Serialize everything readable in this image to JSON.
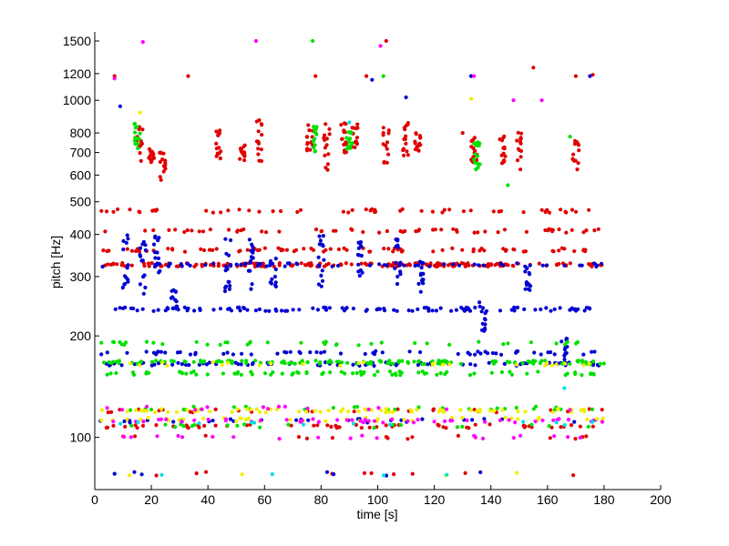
{
  "chart_data": {
    "type": "scatter",
    "title": "",
    "xlabel": "time [s]",
    "ylabel": "pitch [Hz]",
    "xlim": [
      0,
      200
    ],
    "ylim": [
      70,
      1500
    ],
    "yscale": "log",
    "grid": false,
    "legend": "none",
    "x_ticks": [
      0,
      20,
      40,
      60,
      80,
      100,
      120,
      140,
      160,
      180,
      200
    ],
    "y_ticks": [
      100,
      200,
      300,
      400,
      500,
      600,
      700,
      800,
      1000,
      1200,
      1500
    ],
    "colors": {
      "red": "#e00000",
      "blue": "#0000d0",
      "green": "#00e000",
      "yellow": "#f0f000",
      "magenta": "#ff00ff",
      "cyan": "#00e0e0"
    },
    "series": [
      {
        "color": "red",
        "pitch_bands": [
          {
            "x_range": [
              2,
              180
            ],
            "y": 325,
            "density": 180
          },
          {
            "x_range": [
              2,
              180
            ],
            "y": 360,
            "density": 80
          },
          {
            "x_range": [
              2,
              180
            ],
            "y": 410,
            "density": 60
          },
          {
            "x_range": [
              2,
              180
            ],
            "y": 470,
            "density": 55
          },
          {
            "x_range": [
              2,
              180
            ],
            "y": 108,
            "density": 55
          },
          {
            "x_range": [
              2,
              180
            ],
            "y": 120,
            "density": 25
          },
          {
            "x_range": [
              2,
              180
            ],
            "y": 100,
            "density": 15
          },
          {
            "x_range": [
              2,
              180
            ],
            "y": 78,
            "density": 10
          }
        ],
        "clusters": [
          {
            "x": 16,
            "y_range": [
              650,
              850
            ]
          },
          {
            "x": 20,
            "y_range": [
              650,
              720
            ]
          },
          {
            "x": 24,
            "y_range": [
              580,
              720
            ]
          },
          {
            "x": 44,
            "y_range": [
              660,
              820
            ]
          },
          {
            "x": 52,
            "y_range": [
              660,
              740
            ]
          },
          {
            "x": 58,
            "y_range": [
              640,
              900
            ]
          },
          {
            "x": 76,
            "y_range": [
              700,
              850
            ]
          },
          {
            "x": 82,
            "y_range": [
              620,
              870
            ]
          },
          {
            "x": 88,
            "y_range": [
              700,
              860
            ]
          },
          {
            "x": 92,
            "y_range": [
              720,
              860
            ]
          },
          {
            "x": 103,
            "y_range": [
              650,
              840
            ]
          },
          {
            "x": 110,
            "y_range": [
              680,
              860
            ]
          },
          {
            "x": 114,
            "y_range": [
              700,
              800
            ]
          },
          {
            "x": 134,
            "y_range": [
              640,
              780
            ]
          },
          {
            "x": 144,
            "y_range": [
              650,
              840
            ]
          },
          {
            "x": 150,
            "y_range": [
              620,
              820
            ]
          },
          {
            "x": 170,
            "y_range": [
              620,
              780
            ]
          }
        ],
        "outliers": [
          [
            7,
            1180
          ],
          [
            33,
            1180
          ],
          [
            78,
            1180
          ],
          [
            96,
            1180
          ],
          [
            103,
            1500
          ],
          [
            130,
            800
          ],
          [
            155,
            1250
          ],
          [
            170,
            1180
          ],
          [
            176,
            1190
          ]
        ]
      },
      {
        "color": "blue",
        "pitch_bands": [
          {
            "x_range": [
              2,
              180
            ],
            "y": 325,
            "density": 60
          },
          {
            "x_range": [
              2,
              180
            ],
            "y": 240,
            "density": 110
          },
          {
            "x_range": [
              2,
              180
            ],
            "y": 165,
            "density": 90
          },
          {
            "x_range": [
              2,
              180
            ],
            "y": 178,
            "density": 60
          },
          {
            "x_range": [
              2,
              180
            ],
            "y": 112,
            "density": 30
          },
          {
            "x_range": [
              2,
              180
            ],
            "y": 78,
            "density": 6
          }
        ],
        "clusters": [
          {
            "x": 11,
            "y_range": [
              270,
              400
            ]
          },
          {
            "x": 17,
            "y_range": [
              260,
              380
            ]
          },
          {
            "x": 22,
            "y_range": [
              270,
              400
            ]
          },
          {
            "x": 28,
            "y_range": [
              240,
              280
            ]
          },
          {
            "x": 47,
            "y_range": [
              270,
              390
            ]
          },
          {
            "x": 55,
            "y_range": [
              270,
              390
            ]
          },
          {
            "x": 63,
            "y_range": [
              280,
              340
            ]
          },
          {
            "x": 80,
            "y_range": [
              270,
              400
            ]
          },
          {
            "x": 94,
            "y_range": [
              270,
              380
            ]
          },
          {
            "x": 107,
            "y_range": [
              270,
              390
            ]
          },
          {
            "x": 115,
            "y_range": [
              270,
              340
            ]
          },
          {
            "x": 137,
            "y_range": [
              200,
              260
            ]
          },
          {
            "x": 153,
            "y_range": [
              270,
              330
            ]
          },
          {
            "x": 166,
            "y_range": [
              160,
              200
            ]
          }
        ],
        "outliers": [
          [
            7,
            78
          ],
          [
            9,
            960
          ],
          [
            98,
            1150
          ],
          [
            110,
            1020
          ],
          [
            133,
            1180
          ],
          [
            175,
            1180
          ]
        ]
      },
      {
        "color": "green",
        "pitch_bands": [
          {
            "x_range": [
              2,
              180
            ],
            "y": 167,
            "density": 140
          },
          {
            "x_range": [
              2,
              180
            ],
            "y": 155,
            "density": 80
          },
          {
            "x_range": [
              2,
              180
            ],
            "y": 190,
            "density": 40
          },
          {
            "x_range": [
              2,
              180
            ],
            "y": 122,
            "density": 30
          },
          {
            "x_range": [
              2,
              180
            ],
            "y": 108,
            "density": 20
          }
        ],
        "clusters": [
          {
            "x": 15,
            "y_range": [
              720,
              860
            ]
          },
          {
            "x": 78,
            "y_range": [
              700,
              840
            ]
          },
          {
            "x": 90,
            "y_range": [
              700,
              820
            ]
          },
          {
            "x": 135,
            "y_range": [
              620,
              760
            ]
          }
        ],
        "outliers": [
          [
            77,
            1500
          ],
          [
            102,
            1180
          ],
          [
            146,
            560
          ],
          [
            168,
            780
          ]
        ]
      },
      {
        "color": "yellow",
        "pitch_bands": [
          {
            "x_range": [
              2,
              180
            ],
            "y": 120,
            "density": 70
          },
          {
            "x_range": [
              2,
              180
            ],
            "y": 113,
            "density": 40
          },
          {
            "x_range": [
              2,
              180
            ],
            "y": 165,
            "density": 25
          },
          {
            "x_range": [
              2,
              180
            ],
            "y": 78,
            "density": 4
          }
        ],
        "clusters": [],
        "outliers": [
          [
            16,
            920
          ],
          [
            133,
            1010
          ]
        ]
      },
      {
        "color": "magenta",
        "pitch_bands": [
          {
            "x_range": [
              2,
              180
            ],
            "y": 112,
            "density": 50
          },
          {
            "x_range": [
              2,
              180
            ],
            "y": 100,
            "density": 20
          },
          {
            "x_range": [
              2,
              180
            ],
            "y": 122,
            "density": 15
          }
        ],
        "clusters": [],
        "outliers": [
          [
            7,
            1160
          ],
          [
            17,
            1490
          ],
          [
            57,
            1500
          ],
          [
            101,
            1450
          ],
          [
            134,
            1180
          ],
          [
            148,
            1000
          ],
          [
            158,
            1000
          ]
        ]
      },
      {
        "color": "cyan",
        "pitch_bands": [
          {
            "x_range": [
              2,
              180
            ],
            "y": 110,
            "density": 12
          },
          {
            "x_range": [
              2,
              180
            ],
            "y": 78,
            "density": 4
          }
        ],
        "clusters": [],
        "outliers": [
          [
            90,
            860
          ],
          [
            166,
            140
          ]
        ]
      }
    ]
  }
}
